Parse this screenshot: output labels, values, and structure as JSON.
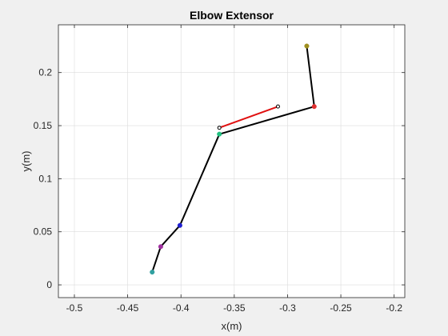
{
  "chart_data": {
    "type": "line",
    "title": "Elbow Extensor",
    "xlabel": "x(m)",
    "ylabel": "y(m)",
    "xlim": [
      -0.515,
      -0.19
    ],
    "ylim": [
      -0.012,
      0.245
    ],
    "xticks": [
      -0.5,
      -0.45,
      -0.4,
      -0.35,
      -0.3,
      -0.25,
      -0.2
    ],
    "xtick_labels": [
      "-0.5",
      "-0.45",
      "-0.4",
      "-0.35",
      "-0.3",
      "-0.25",
      "-0.2"
    ],
    "yticks": [
      0,
      0.05,
      0.1,
      0.15,
      0.2
    ],
    "ytick_labels": [
      "0",
      "0.05",
      "0.1",
      "0.15",
      "0.2"
    ],
    "grid": true,
    "series": [
      {
        "color": "#000000",
        "x": [
          -0.427,
          -0.419,
          -0.401,
          -0.364,
          -0.275,
          -0.282
        ],
        "y": [
          0.012,
          0.036,
          0.056,
          0.142,
          0.168,
          0.225
        ]
      },
      {
        "color": "#e01010",
        "x": [
          -0.364,
          -0.309
        ],
        "y": [
          0.148,
          0.168
        ]
      }
    ],
    "joints": [
      {
        "x": -0.427,
        "y": 0.012,
        "color": "#30a0a0"
      },
      {
        "x": -0.419,
        "y": 0.036,
        "color": "#a030a0"
      },
      {
        "x": -0.401,
        "y": 0.056,
        "color": "#2020d0"
      },
      {
        "x": -0.364,
        "y": 0.142,
        "color": "#20c080"
      },
      {
        "x": -0.275,
        "y": 0.168,
        "color": "#e03030"
      },
      {
        "x": -0.282,
        "y": 0.225,
        "color": "#a09020"
      }
    ],
    "muscle_endpoints": [
      {
        "x": -0.364,
        "y": 0.148
      },
      {
        "x": -0.309,
        "y": 0.168
      }
    ]
  }
}
